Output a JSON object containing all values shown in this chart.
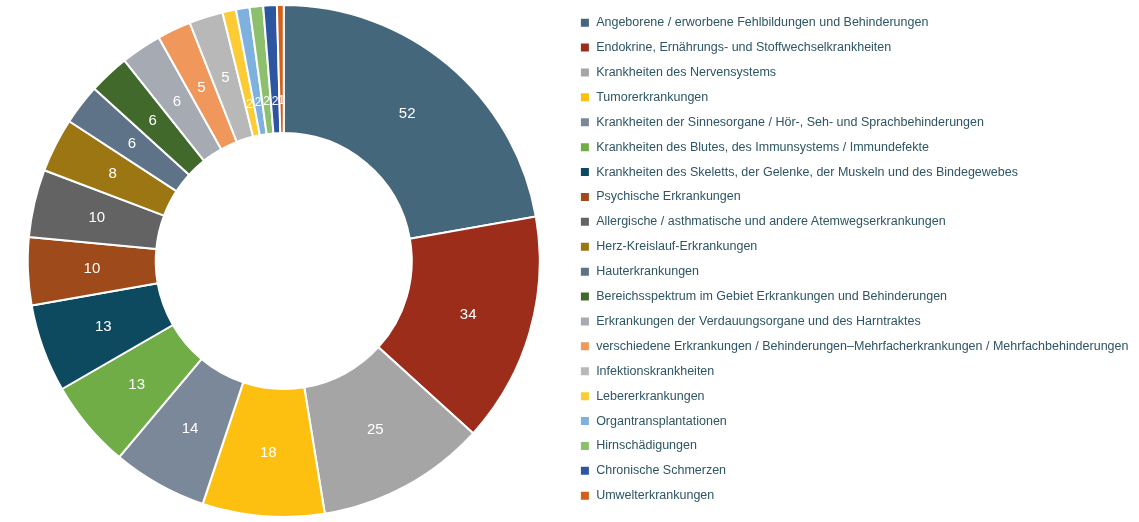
{
  "chart_data": {
    "type": "donut",
    "categories": [
      "Angeborene / erworbene Fehlbildungen und Behinderungen",
      "Endokrine, Ernährungs- und Stoffwechselkrankheiten",
      "Krankheiten des Nervensystems",
      "Tumorerkrankungen",
      "Krankheiten der Sinnesorgane / Hör-, Seh- und Sprachbehinderungen",
      "Krankheiten des Blutes, des Immunsystems / Immundefekte",
      "Krankheiten des Skeletts, der Gelenke, der Muskeln und des Bindegewebes",
      "Psychische Erkrankungen",
      "Allergische / asthmatische und andere Atemwegserkrankungen",
      "Herz-Kreislauf-Erkrankungen",
      "Hauterkrankungen",
      "Bereichsspektrum im Gebiet Erkrankungen und Behinderungen",
      "Erkrankungen der Verdauungsorgane und des Harntraktes",
      "verschiedene Erkrankungen / Behinderungen–Mehrfacherkrankungen / Mehrfachbehinderungen",
      "Infektionskrankheiten",
      "Lebererkrankungen",
      "Organtransplantationen",
      "Hirnschädigungen",
      "Chronische Schmerzen",
      "Umwelterkrankungen"
    ],
    "values": [
      52,
      34,
      25,
      18,
      14,
      13,
      13,
      10,
      10,
      8,
      6,
      6,
      6,
      5,
      5,
      2,
      2,
      2,
      2,
      1
    ],
    "colors": [
      "#44677b",
      "#9b2d1a",
      "#a5a5a5",
      "#fdc010",
      "#7a8899",
      "#70ad47",
      "#0d4a5f",
      "#9e4a1b",
      "#636363",
      "#9b7613",
      "#5e7387",
      "#41692c",
      "#a6aab3",
      "#f0975c",
      "#b8b8b8",
      "#fdcb33",
      "#7fb1e0",
      "#8dc06c",
      "#2d56a0",
      "#d45f1a"
    ],
    "data_labels": true,
    "legend": "right"
  }
}
